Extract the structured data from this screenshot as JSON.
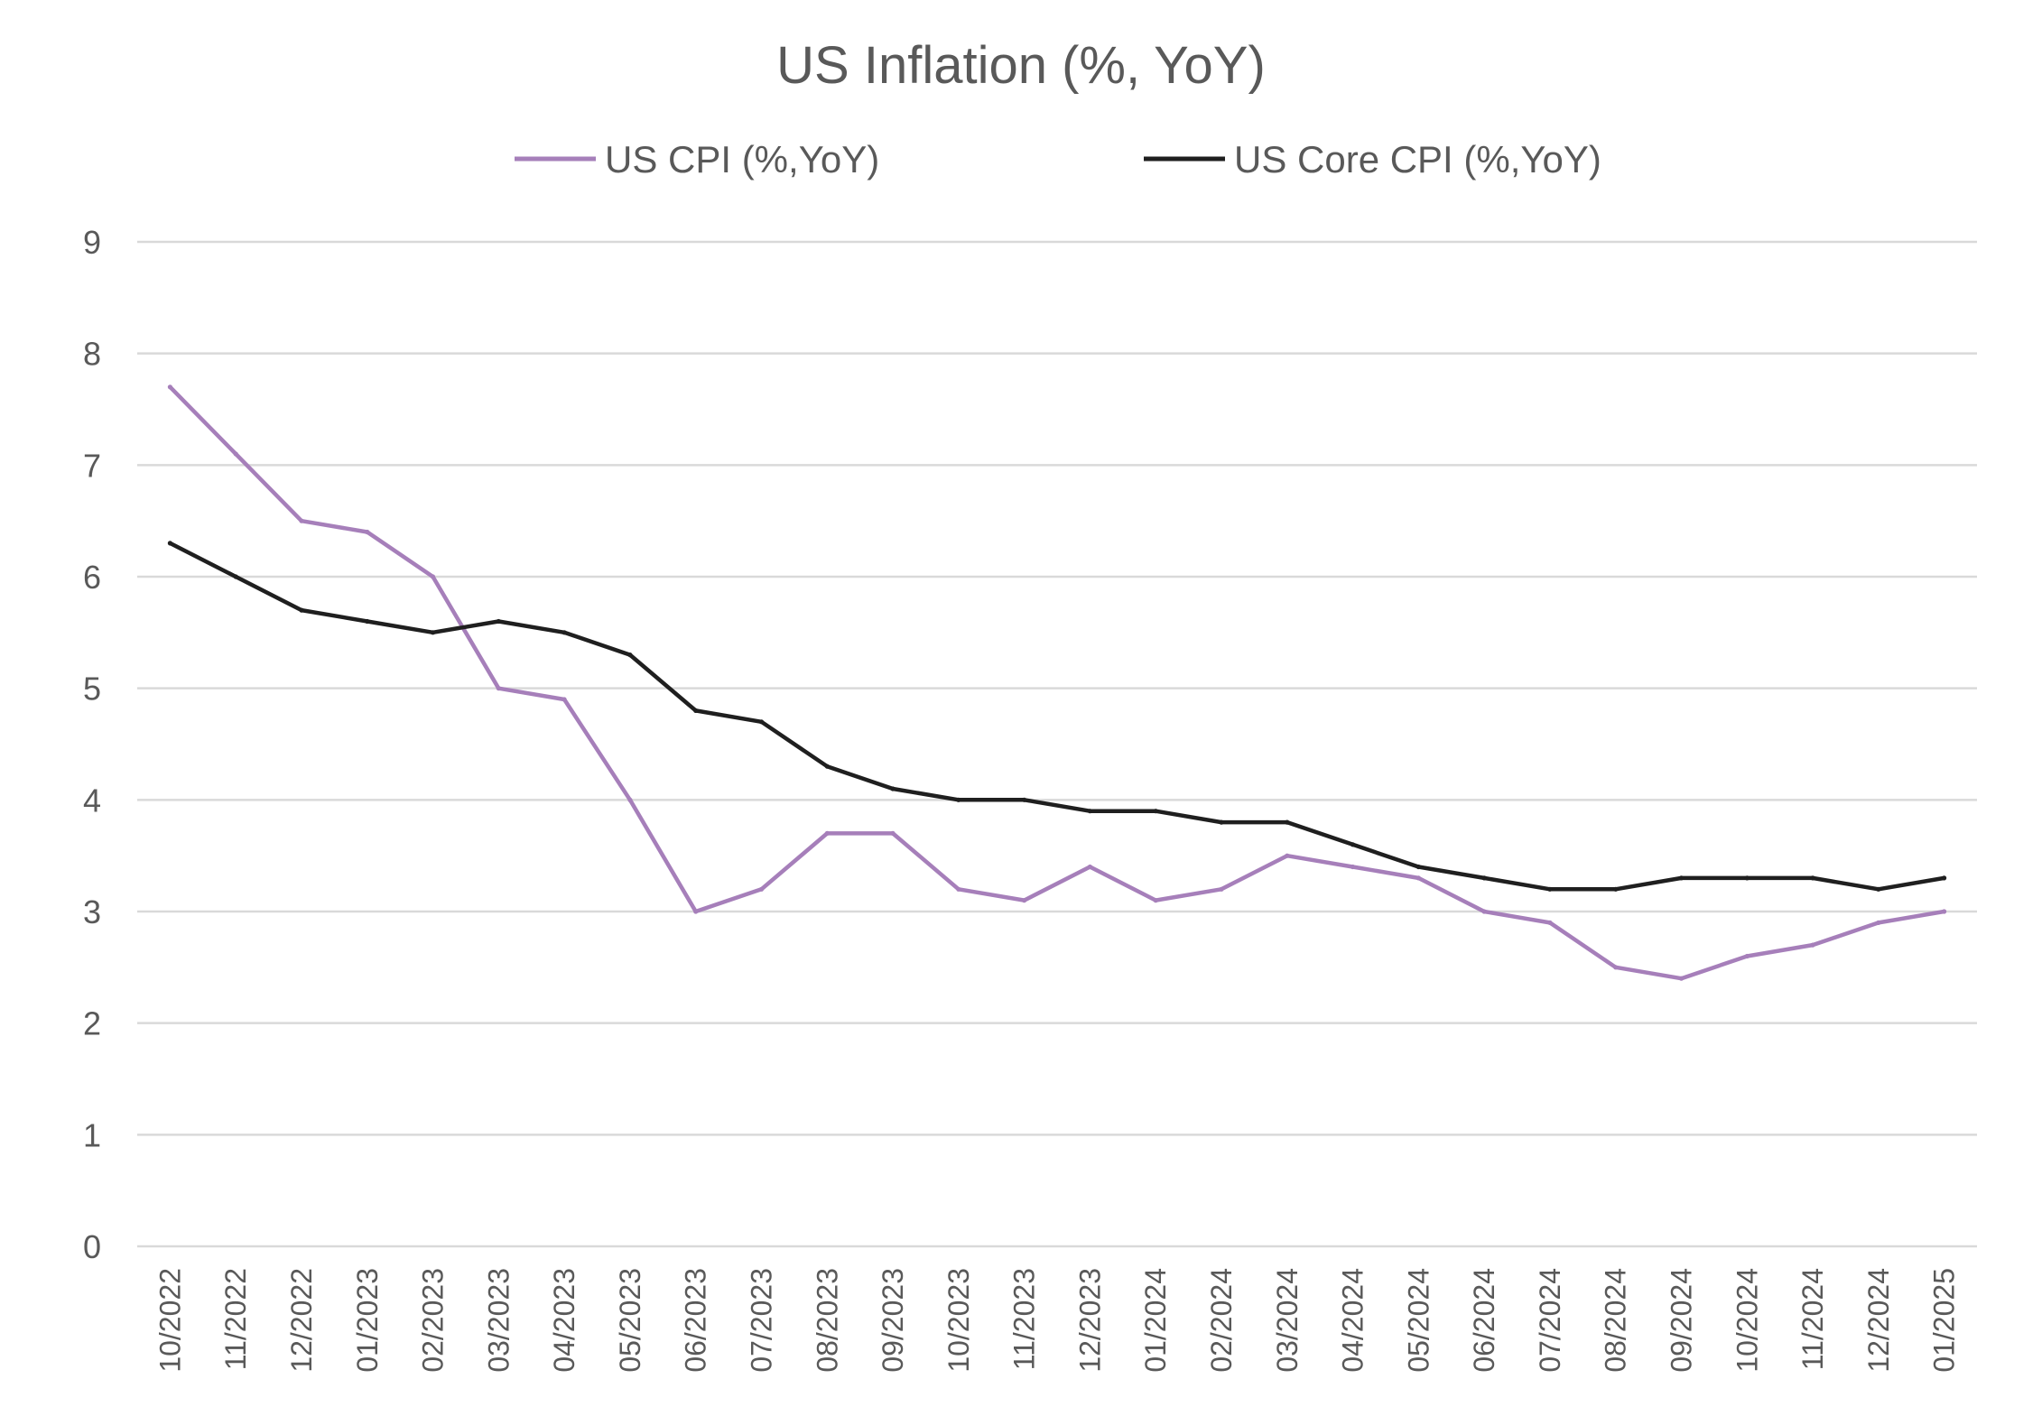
{
  "chart_data": {
    "type": "line",
    "title": "US Inflation (%, YoY)",
    "xlabel": "",
    "ylabel": "",
    "ylim": [
      0,
      9
    ],
    "yticks": [
      0,
      1,
      2,
      3,
      4,
      5,
      6,
      7,
      8,
      9
    ],
    "grid": true,
    "legend_position": "top",
    "categories": [
      "10/2022",
      "11/2022",
      "12/2022",
      "01/2023",
      "02/2023",
      "03/2023",
      "04/2023",
      "05/2023",
      "06/2023",
      "07/2023",
      "08/2023",
      "09/2023",
      "10/2023",
      "11/2023",
      "12/2023",
      "01/2024",
      "02/2024",
      "03/2024",
      "04/2024",
      "05/2024",
      "06/2024",
      "07/2024",
      "08/2024",
      "09/2024",
      "10/2024",
      "11/2024",
      "12/2024",
      "01/2025"
    ],
    "series": [
      {
        "name": "US CPI (%,YoY)",
        "color": "#a67fba",
        "values": [
          7.7,
          7.1,
          6.5,
          6.4,
          6.0,
          5.0,
          4.9,
          4.0,
          3.0,
          3.2,
          3.7,
          3.7,
          3.2,
          3.1,
          3.4,
          3.1,
          3.2,
          3.5,
          3.4,
          3.3,
          3.0,
          2.9,
          2.5,
          2.4,
          2.6,
          2.7,
          2.9,
          3.0
        ]
      },
      {
        "name": "US Core CPI (%,YoY)",
        "color": "#1f1f1f",
        "values": [
          6.3,
          6.0,
          5.7,
          5.6,
          5.5,
          5.6,
          5.5,
          5.3,
          4.8,
          4.7,
          4.3,
          4.1,
          4.0,
          4.0,
          3.9,
          3.9,
          3.8,
          3.8,
          3.6,
          3.4,
          3.3,
          3.2,
          3.2,
          3.3,
          3.3,
          3.3,
          3.2,
          3.3
        ]
      }
    ]
  }
}
